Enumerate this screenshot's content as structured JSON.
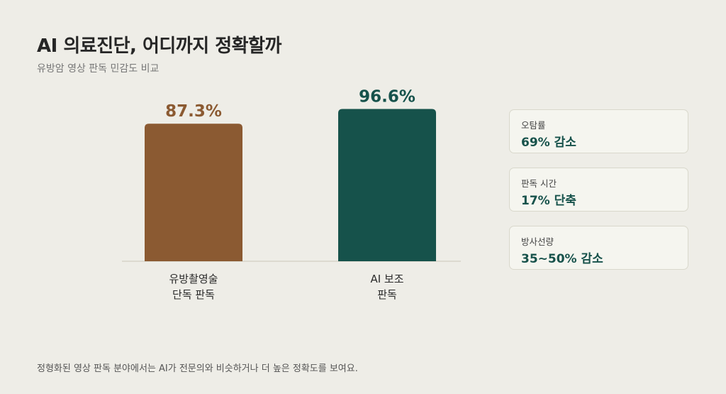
{
  "header": {
    "title": "AI 의료진단, 어디까지 정확할까",
    "subtitle": "유방암 영상 판독 민감도 비교"
  },
  "chart_data": {
    "type": "bar",
    "categories": [
      [
        "유방촬영술",
        "단독 판독"
      ],
      [
        "AI 보조",
        "판독"
      ]
    ],
    "values": [
      87.3,
      96.6
    ],
    "value_labels": [
      "87.3%",
      "96.6%"
    ],
    "colors": [
      "#8b5a32",
      "#16524b"
    ],
    "unit": "%",
    "ylim": [
      0,
      100
    ],
    "grid": false,
    "legend": "none"
  },
  "stats": [
    {
      "label": "오탐률",
      "value": "69% 감소"
    },
    {
      "label": "판독 시간",
      "value": "17% 단축"
    },
    {
      "label": "방사선량",
      "value": "35~50% 감소"
    }
  ],
  "footnote": "정형화된 영상 판독 분야에서는 AI가 전문의와 비슷하거나 더 높은 정확도를 보여요."
}
